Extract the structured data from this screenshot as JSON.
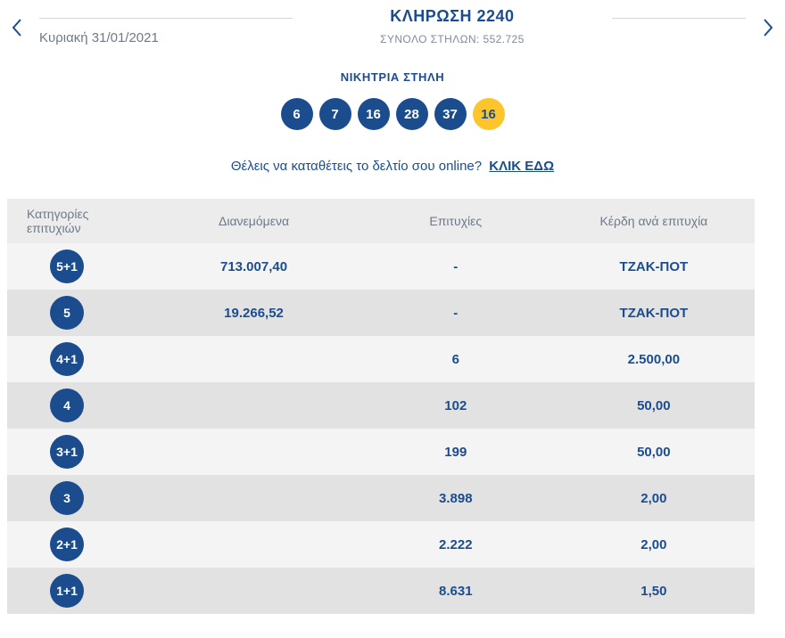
{
  "header": {
    "draw_title": "ΚΛΗΡΩΣΗ 2240",
    "total_columns": "ΣΥΝΟΛΟ ΣΤΗΛΩΝ: 552.725",
    "date": "Κυριακή 31/01/2021"
  },
  "winning": {
    "label": "ΝΙΚΗΤΡΙΑ ΣΤΗΛΗ",
    "numbers": [
      "6",
      "7",
      "16",
      "28",
      "37"
    ],
    "joker_number": "16"
  },
  "cta": {
    "text": "Θέλεις να καταθέτεις το δελτίο σου online?",
    "link_label": "ΚΛΙΚ ΕΔΩ"
  },
  "table": {
    "headers": {
      "category": "Κατηγορίες επιτυχιών",
      "distributed": "Διανεμόμενα",
      "successes": "Επιτυχίες",
      "winnings": "Κέρδη ανά επιτυχία"
    },
    "rows": [
      {
        "category": "5+1",
        "distributed": "713.007,40",
        "successes": "-",
        "winnings": "ΤΖΑΚ-ΠΟΤ"
      },
      {
        "category": "5",
        "distributed": "19.266,52",
        "successes": "-",
        "winnings": "ΤΖΑΚ-ΠΟΤ"
      },
      {
        "category": "4+1",
        "distributed": "",
        "successes": "6",
        "winnings": "2.500,00"
      },
      {
        "category": "4",
        "distributed": "",
        "successes": "102",
        "winnings": "50,00"
      },
      {
        "category": "3+1",
        "distributed": "",
        "successes": "199",
        "winnings": "50,00"
      },
      {
        "category": "3",
        "distributed": "",
        "successes": "3.898",
        "winnings": "2,00"
      },
      {
        "category": "2+1",
        "distributed": "",
        "successes": "2.222",
        "winnings": "2,00"
      },
      {
        "category": "1+1",
        "distributed": "",
        "successes": "8.631",
        "winnings": "1,50"
      }
    ]
  },
  "colors": {
    "navy": "#1b4d8e",
    "joker_yellow": "#fcc52c",
    "row_light": "#f4f4f4",
    "row_dark": "#e2e2e2",
    "header_gray": "#ececec"
  }
}
